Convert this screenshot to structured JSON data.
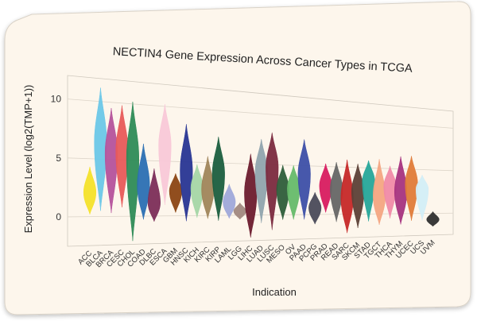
{
  "chart_data": {
    "type": "violin",
    "title": "NECTIN4 Gene Expression Across Cancer Types in TCGA",
    "xlabel": "Indication",
    "ylabel": "Expression Level (log2(TMP+1))",
    "ylim": [
      -2.5,
      12
    ],
    "yticks": [
      0,
      5,
      10
    ],
    "grid": true,
    "background": "#fdf6ec",
    "categories": [
      "ACC",
      "BLCA",
      "BRCA",
      "CESC",
      "CHOL",
      "COAD",
      "DLBC",
      "ESCA",
      "GBM",
      "HNSC",
      "KICH",
      "KIRC",
      "KIRP",
      "LAML",
      "LGG",
      "LIHC",
      "LUAD",
      "LUSC",
      "MESO",
      "OV",
      "PAAD",
      "PCPG",
      "PRAD",
      "READ",
      "SARC",
      "SKCM",
      "STAD",
      "TGCT",
      "THCA",
      "THYM",
      "UCEC",
      "UCS",
      "UVM"
    ],
    "series": [
      {
        "name": "ACC",
        "min": 0.2,
        "max": 4.3,
        "median": 2.1,
        "color": "#f4e22a"
      },
      {
        "name": "BLCA",
        "min": 0.5,
        "max": 11.2,
        "median": 6.5,
        "color": "#6bc7e8"
      },
      {
        "name": "BRCA",
        "min": 0.3,
        "max": 9.5,
        "median": 5.6,
        "color": "#b5529c"
      },
      {
        "name": "CESC",
        "min": 0.8,
        "max": 9.8,
        "median": 5.8,
        "color": "#e85a5a"
      },
      {
        "name": "CHOL",
        "min": -2.2,
        "max": 10.2,
        "median": 5.2,
        "color": "#2e8b57"
      },
      {
        "name": "COAD",
        "min": -0.3,
        "max": 6.5,
        "median": 2.8,
        "color": "#2b6fb3"
      },
      {
        "name": "DLBC",
        "min": -0.5,
        "max": 4.3,
        "median": 1.2,
        "color": "#7c2d58"
      },
      {
        "name": "ESCA",
        "min": 1.0,
        "max": 10.2,
        "median": 6.5,
        "color": "#f9c8d8"
      },
      {
        "name": "GBM",
        "min": 0.3,
        "max": 3.9,
        "median": 2.3,
        "color": "#8b4513"
      },
      {
        "name": "HNSC",
        "min": -0.5,
        "max": 8.5,
        "median": 4.2,
        "color": "#283593"
      },
      {
        "name": "KICH",
        "min": -0.2,
        "max": 4.8,
        "median": 2.6,
        "color": "#a5d6a7"
      },
      {
        "name": "KIRC",
        "min": -0.3,
        "max": 5.6,
        "median": 2.5,
        "color": "#a0855b"
      },
      {
        "name": "KIRP",
        "min": -0.5,
        "max": 7.5,
        "median": 4.0,
        "color": "#1b5e3f"
      },
      {
        "name": "LAML",
        "min": -0.3,
        "max": 3.0,
        "median": 1.3,
        "color": "#9fa8da"
      },
      {
        "name": "LGG",
        "min": -0.4,
        "max": 1.2,
        "median": 0.4,
        "color": "#a1887f"
      },
      {
        "name": "LIHC",
        "min": -2.2,
        "max": 6.0,
        "median": 2.2,
        "color": "#6d1b2e"
      },
      {
        "name": "LUAD",
        "min": -0.8,
        "max": 7.5,
        "median": 4.3,
        "color": "#90a4ae"
      },
      {
        "name": "LUSC",
        "min": -1.5,
        "max": 8.2,
        "median": 4.8,
        "color": "#7b2a3f"
      },
      {
        "name": "MESO",
        "min": -0.5,
        "max": 5.0,
        "median": 2.6,
        "color": "#2e5d3a"
      },
      {
        "name": "OV",
        "min": -0.5,
        "max": 5.0,
        "median": 2.7,
        "color": "#66bb6a"
      },
      {
        "name": "PAAD",
        "min": -0.5,
        "max": 7.7,
        "median": 4.2,
        "color": "#3d4fa8"
      },
      {
        "name": "PCPG",
        "min": -1.0,
        "max": 2.3,
        "median": 0.7,
        "color": "#4a4a5a"
      },
      {
        "name": "PRAD",
        "min": 0.2,
        "max": 5.3,
        "median": 3.0,
        "color": "#d81b60"
      },
      {
        "name": "READ",
        "min": -0.8,
        "max": 5.5,
        "median": 2.7,
        "color": "#666666"
      },
      {
        "name": "SARC",
        "min": -2.0,
        "max": 5.8,
        "median": 1.8,
        "color": "#c62828"
      },
      {
        "name": "SKCM",
        "min": -1.5,
        "max": 5.4,
        "median": 2.5,
        "color": "#5d4037"
      },
      {
        "name": "STAD",
        "min": -0.8,
        "max": 5.8,
        "median": 3.6,
        "color": "#26a69a"
      },
      {
        "name": "TGCT",
        "min": -1.2,
        "max": 6.0,
        "median": 2.0,
        "color": "#f4a582"
      },
      {
        "name": "THCA",
        "min": -0.5,
        "max": 5.3,
        "median": 3.1,
        "color": "#f08aa8"
      },
      {
        "name": "THYM",
        "min": -1.2,
        "max": 6.4,
        "median": 2.5,
        "color": "#a6337f"
      },
      {
        "name": "UCEC",
        "min": -0.8,
        "max": 6.5,
        "median": 3.4,
        "color": "#e07b39"
      },
      {
        "name": "UCS",
        "min": -0.8,
        "max": 4.4,
        "median": 2.8,
        "color": "#d3eef7"
      },
      {
        "name": "UVM",
        "min": -1.5,
        "max": 0.2,
        "median": -0.7,
        "color": "#2f2f2f"
      }
    ]
  }
}
